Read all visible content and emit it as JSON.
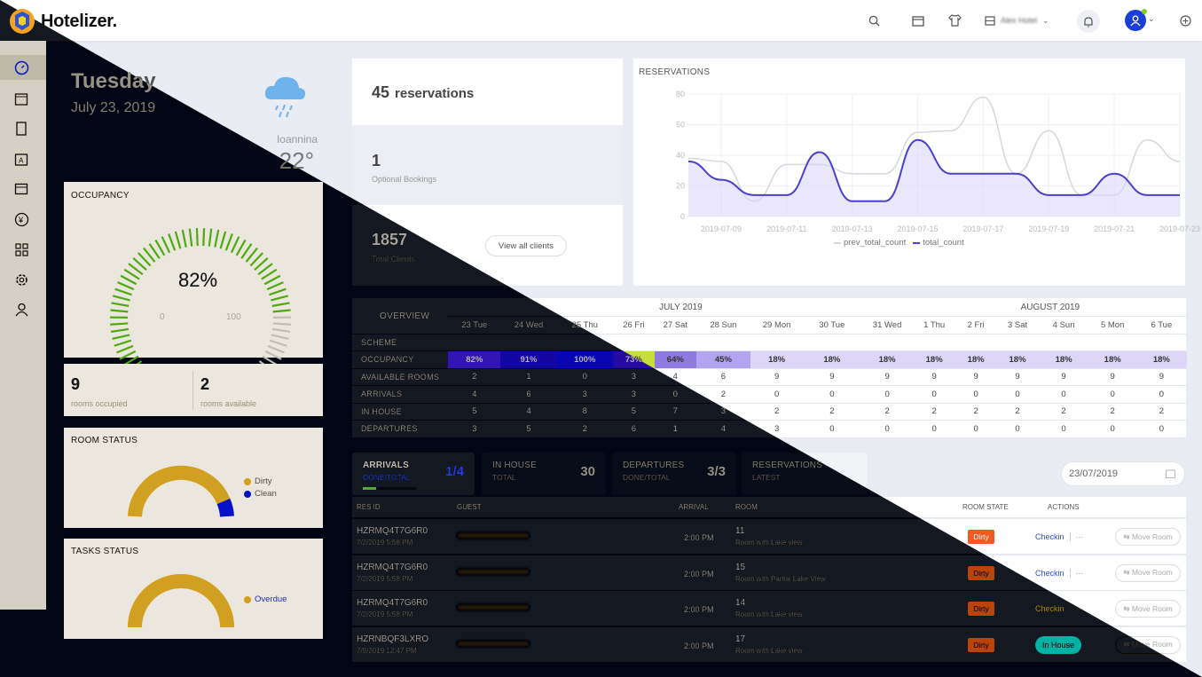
{
  "app": {
    "name": "Hotelizer."
  },
  "topbar": {
    "hotel_selector": "Alex Hotel"
  },
  "weather": {
    "day": "Tuesday",
    "date": "July 23, 2019",
    "city": "Ioannina",
    "temperature": "22°"
  },
  "occupancy": {
    "title": "OCCUPANCY",
    "percent": "82%",
    "value": 0.82,
    "min": "0",
    "max": "100"
  },
  "rooms": {
    "occupied_count": "9",
    "occupied_label": "rooms occupied",
    "available_count": "2",
    "available_label": "rooms available"
  },
  "room_status": {
    "title": "ROOM STATUS",
    "legend": [
      {
        "label": "Dirty",
        "color": "#1a47ff"
      },
      {
        "label": "Clean",
        "color": "#f2d416"
      }
    ]
  },
  "tasks_status": {
    "title": "TASKS STATUS",
    "legend": [
      {
        "label": "Overdue",
        "color": "#1a47ff"
      }
    ]
  },
  "summary": {
    "reservations_count": "45",
    "reservations_label": "reservations",
    "optional_count": "1",
    "optional_label": "Optional Bookings",
    "clients_count": "1857",
    "clients_label": "Total Clients",
    "view_clients": "View all clients"
  },
  "chart_data": {
    "type": "line",
    "title": "RESERVATIONS",
    "x": [
      "2019-07-08",
      "2019-07-09",
      "2019-07-10",
      "2019-07-11",
      "2019-07-12",
      "2019-07-13",
      "2019-07-14",
      "2019-07-15",
      "2019-07-16",
      "2019-07-17",
      "2019-07-18",
      "2019-07-19",
      "2019-07-20",
      "2019-07-21",
      "2019-07-22",
      "2019-07-23"
    ],
    "x_ticks": [
      "2019-07-09",
      "2019-07-11",
      "2019-07-13",
      "2019-07-15",
      "2019-07-17",
      "2019-07-19",
      "2019-07-21",
      "2019-07-23"
    ],
    "ylim": [
      0,
      80
    ],
    "y_ticks": [
      "0",
      "20",
      "40",
      "60",
      "80"
    ],
    "series": [
      {
        "name": "prev_total_count",
        "color": "#d5d7de",
        "values": [
          38,
          36,
          10,
          34,
          34,
          28,
          28,
          55,
          56,
          78,
          28,
          56,
          14,
          14,
          50,
          36
        ]
      },
      {
        "name": "total_count",
        "color": "#4a3fd0",
        "values": [
          36,
          24,
          14,
          14,
          42,
          10,
          10,
          50,
          28,
          28,
          28,
          14,
          14,
          28,
          14,
          14
        ]
      }
    ]
  },
  "overview": {
    "title": "OVERVIEW",
    "months": [
      {
        "label": "JULY 2019",
        "span": 9
      },
      {
        "label": "AUGUST 2019",
        "span": 6
      }
    ],
    "days": [
      "23 Tue",
      "24 Wed",
      "25 Thu",
      "26 Fri",
      "27 Sat",
      "28 Sun",
      "29 Mon",
      "30 Tue",
      "31 Wed",
      "1 Thu",
      "2 Fri",
      "3 Sat",
      "4 Sun",
      "5 Mon",
      "6 Tue"
    ],
    "rows": [
      {
        "label": "SCHEME",
        "values": [
          "",
          "",
          "",
          "",
          "",
          "",
          "",
          "",
          "",
          "",
          "",
          "",
          "",
          "",
          ""
        ]
      },
      {
        "label": "OCCUPANCY",
        "values": [
          "82%",
          "91%",
          "100%",
          "73%",
          "64%",
          "45%",
          "18%",
          "18%",
          "18%",
          "18%",
          "18%",
          "18%",
          "18%",
          "18%",
          "18%"
        ],
        "colors": [
          "#b9d12a",
          "#d9ec3a",
          "#f3e12c",
          "#c7dc3e",
          "#8f7be0",
          "#b2a4ee",
          "#ddd6f9",
          "#ddd6f9",
          "#ddd6f9",
          "#ddd6f9",
          "#ddd6f9",
          "#ddd6f9",
          "#ddd6f9",
          "#ddd6f9",
          "#ddd6f9"
        ]
      },
      {
        "label": "AVAILABLE ROOMS",
        "values": [
          "2",
          "1",
          "0",
          "3",
          "4",
          "6",
          "9",
          "9",
          "9",
          "9",
          "9",
          "9",
          "9",
          "9",
          "9"
        ]
      },
      {
        "label": "ARRIVALS",
        "values": [
          "4",
          "6",
          "3",
          "3",
          "0",
          "2",
          "0",
          "0",
          "0",
          "0",
          "0",
          "0",
          "0",
          "0",
          "0"
        ]
      },
      {
        "label": "IN HOUSE",
        "values": [
          "5",
          "4",
          "8",
          "5",
          "7",
          "3",
          "2",
          "2",
          "2",
          "2",
          "2",
          "2",
          "2",
          "2",
          "2"
        ]
      },
      {
        "label": "DEPARTURES",
        "values": [
          "3",
          "5",
          "2",
          "6",
          "1",
          "4",
          "3",
          "0",
          "0",
          "0",
          "0",
          "0",
          "0",
          "0",
          "0"
        ]
      }
    ]
  },
  "tabs": [
    {
      "title": "ARRIVALS",
      "sub": "DONE/TOTAL",
      "count": "1/4",
      "progress": 0.25
    },
    {
      "title": "IN HOUSE",
      "sub": "TOTAL",
      "count": "30"
    },
    {
      "title": "DEPARTURES",
      "sub": "DONE/TOTAL",
      "count": "3/3"
    },
    {
      "title": "RESERVATIONS",
      "sub": "LATEST",
      "count": ""
    }
  ],
  "date_filter": "23/07/2019",
  "table": {
    "headers": {
      "res_id": "RES ID",
      "guest": "GUEST",
      "arrival": "ARRIVAL",
      "room": "ROOM",
      "room_state": "ROOM STATE",
      "actions": "ACTIONS"
    },
    "rows": [
      {
        "res_id": "HZRMQ4T7G6R0",
        "date": "7/2/2019 5:58 PM",
        "arrival": "2:00 PM",
        "room": "11",
        "room_desc": "Room with Lake view",
        "state": "Dirty",
        "state_color": "#f05a22",
        "action": "Checkin",
        "move": "Move Room"
      },
      {
        "res_id": "HZRMQ4T7G6R0",
        "date": "7/2/2019 5:58 PM",
        "arrival": "2:00 PM",
        "room": "15",
        "room_desc": "Room with Partial Lake View",
        "state": "Dirty",
        "state_color": "#2fa3e6",
        "action": "Checkin",
        "move": "Move Room"
      },
      {
        "res_id": "HZRMQ4T7G6R0",
        "date": "7/2/2019 5:58 PM",
        "arrival": "2:00 PM",
        "room": "14",
        "room_desc": "Room with Lake view",
        "state": "Dirty",
        "state_color": "#2fa3e6",
        "action": "Checkin",
        "move": "Move Room"
      },
      {
        "res_id": "HZRNBQF3LXRO",
        "date": "7/9/2019 12:47 PM",
        "arrival": "2:00 PM",
        "room": "17",
        "room_desc": "Room with Lake view",
        "state": "Dirty",
        "state_color": "#2fa3e6",
        "action": "In House",
        "move": "Move Room"
      }
    ]
  }
}
